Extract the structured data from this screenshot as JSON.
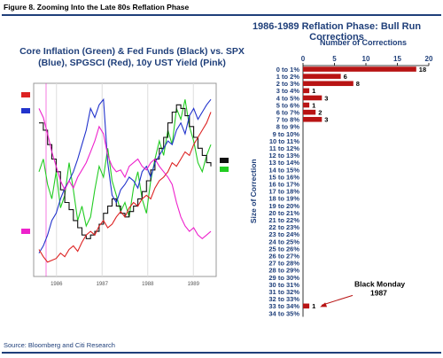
{
  "figure_title": "Figure 8. Zooming Into the Late 80s Reflation Phase",
  "source": "Source: Bloomberg and Citi Research",
  "chart_data": [
    {
      "type": "line",
      "title": "Core Inflation (Green) & Fed Funds (Black) vs. SPX (Blue), SPGSCI (Red), 10y UST Yield (Pink)",
      "x_ticks": [
        "1986",
        "1987",
        "1988",
        "1989"
      ],
      "series": [
        {
          "name": "Core Inflation",
          "color": "#22cc22",
          "values": [
            0.55,
            0.62,
            0.48,
            0.4,
            0.55,
            0.35,
            0.42,
            0.6,
            0.45,
            0.28,
            0.36,
            0.25,
            0.3,
            0.45,
            0.58,
            0.52,
            0.68,
            0.5,
            0.42,
            0.33,
            0.38,
            0.3,
            0.46,
            0.55,
            0.4,
            0.32,
            0.5,
            0.62,
            0.72,
            0.64,
            0.78,
            0.7,
            0.9,
            0.84,
            0.95,
            0.8,
            0.72,
            0.6,
            0.55,
            0.64,
            0.7
          ]
        },
        {
          "name": "Fed Funds",
          "color": "#111111",
          "values": [
            0.82,
            0.78,
            0.7,
            0.62,
            0.55,
            0.45,
            0.38,
            0.34,
            0.28,
            0.24,
            0.2,
            0.18,
            0.2,
            0.22,
            0.26,
            0.32,
            0.36,
            0.4,
            0.36,
            0.32,
            0.3,
            0.33,
            0.36,
            0.4,
            0.44,
            0.5,
            0.56,
            0.62,
            0.68,
            0.74,
            0.82,
            0.88,
            0.92,
            0.9,
            0.86,
            0.8,
            0.74,
            0.68,
            0.64,
            0.6,
            0.58
          ]
        },
        {
          "name": "SPX",
          "color": "#2233cc",
          "values": [
            0.1,
            0.14,
            0.2,
            0.28,
            0.32,
            0.4,
            0.46,
            0.5,
            0.55,
            0.62,
            0.7,
            0.78,
            0.9,
            0.85,
            0.92,
            0.95,
            0.6,
            0.42,
            0.38,
            0.45,
            0.48,
            0.52,
            0.5,
            0.46,
            0.55,
            0.58,
            0.52,
            0.6,
            0.64,
            0.68,
            0.72,
            0.7,
            0.78,
            0.82,
            0.76,
            0.86,
            0.9,
            0.84,
            0.88,
            0.92,
            0.95
          ]
        },
        {
          "name": "SPGSCI",
          "color": "#dd2222",
          "values": [
            0.12,
            0.08,
            0.05,
            0.06,
            0.07,
            0.1,
            0.08,
            0.12,
            0.14,
            0.11,
            0.16,
            0.2,
            0.22,
            0.2,
            0.25,
            0.28,
            0.24,
            0.26,
            0.3,
            0.33,
            0.3,
            0.35,
            0.38,
            0.36,
            0.4,
            0.42,
            0.4,
            0.46,
            0.5,
            0.52,
            0.55,
            0.6,
            0.58,
            0.62,
            0.66,
            0.64,
            0.7,
            0.74,
            0.78,
            0.82,
            0.88
          ]
        },
        {
          "name": "10y UST Yield",
          "color": "#ee22cc",
          "values": [
            0.9,
            0.85,
            0.76,
            0.66,
            0.58,
            0.5,
            0.45,
            0.5,
            0.46,
            0.52,
            0.56,
            0.6,
            0.66,
            0.72,
            0.8,
            0.76,
            0.64,
            0.58,
            0.55,
            0.56,
            0.52,
            0.58,
            0.6,
            0.62,
            0.58,
            0.56,
            0.6,
            0.62,
            0.58,
            0.55,
            0.52,
            0.48,
            0.38,
            0.3,
            0.25,
            0.22,
            0.24,
            0.2,
            0.18,
            0.2,
            0.22
          ]
        }
      ]
    },
    {
      "type": "bar",
      "orientation": "horizontal",
      "title": "1986-1989 Reflation Phase: Bull Run Corrections",
      "xlabel": "Number of Corrections",
      "ylabel": "Size of Correction",
      "xlim": [
        0,
        20
      ],
      "x_ticks": [
        "0",
        "5",
        "10",
        "15",
        "20"
      ],
      "categories": [
        "0 to 1%",
        "1 to 2%",
        "2 to 3%",
        "3 to 4%",
        "4 to 5%",
        "5 to 6%",
        "6 to 7%",
        "7 to 8%",
        "8 to 9%",
        "9 to 10%",
        "10 to 11%",
        "11 to 12%",
        "12 to 13%",
        "13 to 14%",
        "14 to 15%",
        "15 to 16%",
        "16 to 17%",
        "17 to 18%",
        "18 to 19%",
        "19 to 20%",
        "20 to 21%",
        "21 to 22%",
        "22 to 23%",
        "23 to 24%",
        "24 to 25%",
        "25 to 26%",
        "26 to 27%",
        "27 to 28%",
        "28 to 29%",
        "29 to 30%",
        "30 to 31%",
        "31 to 32%",
        "32 to 33%",
        "33 to 34%",
        "34 to 35%"
      ],
      "values": [
        18,
        6,
        8,
        1,
        3,
        1,
        2,
        3,
        0,
        0,
        0,
        0,
        0,
        0,
        0,
        0,
        0,
        0,
        0,
        0,
        0,
        0,
        0,
        0,
        0,
        0,
        0,
        0,
        0,
        0,
        0,
        0,
        0,
        1,
        0
      ],
      "bar_color": "#b81414",
      "annotation": {
        "text_line1": "Black Monday",
        "text_line2": "1987",
        "category_index": 33
      }
    }
  ]
}
